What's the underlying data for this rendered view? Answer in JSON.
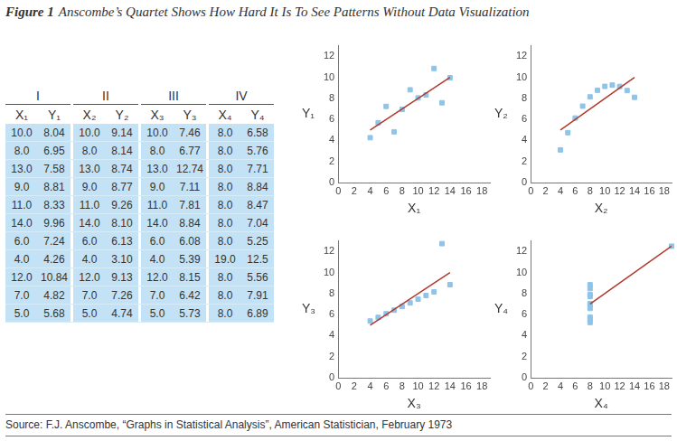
{
  "title": {
    "label": "Figure 1",
    "text": "Anscombe’s Quartet Shows How Hard It Is To See Patterns Without Data Visualization"
  },
  "table": {
    "groups": [
      "I",
      "II",
      "III",
      "IV"
    ],
    "columns": [
      "X₁",
      "Y₁",
      "X₂",
      "Y₂",
      "X₃",
      "Y₃",
      "X₄",
      "Y₄"
    ],
    "rows": [
      [
        "10.0",
        "8.04",
        "10.0",
        "9.14",
        "10.0",
        "7.46",
        "8.0",
        "6.58"
      ],
      [
        "8.0",
        "6.95",
        "8.0",
        "8.14",
        "8.0",
        "6.77",
        "8.0",
        "5.76"
      ],
      [
        "13.0",
        "7.58",
        "13.0",
        "8.74",
        "13.0",
        "12.74",
        "8.0",
        "7.71"
      ],
      [
        "9.0",
        "8.81",
        "9.0",
        "8.77",
        "9.0",
        "7.11",
        "8.0",
        "8.84"
      ],
      [
        "11.0",
        "8.33",
        "11.0",
        "9.26",
        "11.0",
        "7.81",
        "8.0",
        "8.47"
      ],
      [
        "14.0",
        "9.96",
        "14.0",
        "8.10",
        "14.0",
        "8.84",
        "8.0",
        "7.04"
      ],
      [
        "6.0",
        "7.24",
        "6.0",
        "6.13",
        "6.0",
        "6.08",
        "8.0",
        "5.25"
      ],
      [
        "4.0",
        "4.26",
        "4.0",
        "3.10",
        "4.0",
        "5.39",
        "19.0",
        "12.5"
      ],
      [
        "12.0",
        "10.84",
        "12.0",
        "9.13",
        "12.0",
        "8.15",
        "8.0",
        "5.56"
      ],
      [
        "7.0",
        "4.82",
        "7.0",
        "7.26",
        "7.0",
        "6.42",
        "8.0",
        "7.91"
      ],
      [
        "5.0",
        "5.68",
        "5.0",
        "4.74",
        "5.0",
        "5.73",
        "8.0",
        "6.89"
      ]
    ]
  },
  "chart_data": [
    {
      "type": "scatter",
      "x_label": "X₁",
      "y_label": "Y₁",
      "xlim": [
        0,
        19
      ],
      "xticks": [
        0,
        2,
        4,
        6,
        8,
        10,
        12,
        14,
        16,
        18
      ],
      "ylim": [
        0,
        13
      ],
      "yticks": [
        0,
        2,
        4,
        6,
        8,
        10,
        12
      ],
      "grid": false,
      "series": [
        {
          "type": "scatter",
          "marker": "square",
          "color": "#8ec4e8",
          "x": [
            10,
            8,
            13,
            9,
            11,
            14,
            6,
            4,
            12,
            7,
            5
          ],
          "values": [
            8.04,
            6.95,
            7.58,
            8.81,
            8.33,
            9.96,
            7.24,
            4.26,
            10.84,
            4.82,
            5.68
          ]
        },
        {
          "type": "line",
          "line_style": "solid",
          "color": "#b0392c",
          "x": [
            4,
            14
          ],
          "values": [
            5,
            10
          ]
        }
      ]
    },
    {
      "type": "scatter",
      "x_label": "X₂",
      "y_label": "Y₂",
      "xlim": [
        0,
        19
      ],
      "xticks": [
        0,
        2,
        4,
        6,
        8,
        10,
        12,
        14,
        16,
        18
      ],
      "ylim": [
        0,
        13
      ],
      "yticks": [
        0,
        2,
        4,
        6,
        8,
        10,
        12
      ],
      "grid": false,
      "series": [
        {
          "type": "scatter",
          "marker": "square",
          "color": "#8ec4e8",
          "x": [
            10,
            8,
            13,
            9,
            11,
            14,
            6,
            4,
            12,
            7,
            5
          ],
          "values": [
            9.14,
            8.14,
            8.74,
            8.77,
            9.26,
            8.1,
            6.13,
            3.1,
            9.13,
            7.26,
            4.74
          ]
        },
        {
          "type": "line",
          "line_style": "solid",
          "color": "#b0392c",
          "x": [
            4,
            14
          ],
          "values": [
            5,
            10
          ]
        }
      ]
    },
    {
      "type": "scatter",
      "x_label": "X₃",
      "y_label": "Y₃",
      "xlim": [
        0,
        19
      ],
      "xticks": [
        0,
        2,
        4,
        6,
        8,
        10,
        12,
        14,
        16,
        18
      ],
      "ylim": [
        0,
        13
      ],
      "yticks": [
        0,
        2,
        4,
        6,
        8,
        10,
        12
      ],
      "grid": false,
      "series": [
        {
          "type": "scatter",
          "marker": "square",
          "color": "#8ec4e8",
          "x": [
            10,
            8,
            13,
            9,
            11,
            14,
            6,
            4,
            12,
            7,
            5
          ],
          "values": [
            7.46,
            6.77,
            12.74,
            7.11,
            7.81,
            8.84,
            6.08,
            5.39,
            8.15,
            6.42,
            5.73
          ]
        },
        {
          "type": "line",
          "line_style": "solid",
          "color": "#b0392c",
          "x": [
            4,
            14
          ],
          "values": [
            5,
            10
          ]
        }
      ]
    },
    {
      "type": "scatter",
      "x_label": "X₄",
      "y_label": "Y₄",
      "xlim": [
        0,
        19
      ],
      "xticks": [
        0,
        2,
        4,
        6,
        8,
        10,
        12,
        14,
        16,
        18
      ],
      "ylim": [
        0,
        13
      ],
      "yticks": [
        0,
        2,
        4,
        6,
        8,
        10,
        12
      ],
      "grid": false,
      "series": [
        {
          "type": "scatter",
          "marker": "square",
          "color": "#8ec4e8",
          "x": [
            8,
            8,
            8,
            8,
            8,
            8,
            8,
            19,
            8,
            8,
            8
          ],
          "values": [
            6.58,
            5.76,
            7.71,
            8.84,
            8.47,
            7.04,
            5.25,
            12.5,
            5.56,
            7.91,
            6.89
          ]
        },
        {
          "type": "line",
          "line_style": "solid",
          "color": "#b0392c",
          "x": [
            8,
            19
          ],
          "values": [
            7,
            12.5
          ]
        }
      ]
    }
  ],
  "source": "Source: F.J. Anscombe, “Graphs in Statistical Analysis”, American Statistician, February 1973"
}
